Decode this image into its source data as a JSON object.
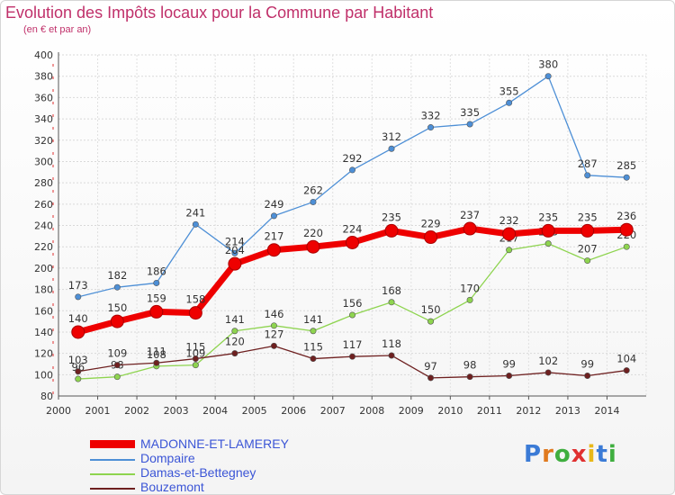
{
  "title": "Evolution des Impôts locaux pour la Commune par Habitant",
  "subtitle": "(en € et par an)",
  "logo_text": "Proxiti",
  "chart_data": {
    "type": "line",
    "x": [
      "2000",
      "2001",
      "2002",
      "2003",
      "2004",
      "2005",
      "2006",
      "2007",
      "2008",
      "2009",
      "2010",
      "2011",
      "2012",
      "2013",
      "2014"
    ],
    "y_ticks": [
      "80",
      "100",
      "120",
      "140",
      "160",
      "180",
      "200",
      "220",
      "240",
      "260",
      "280",
      "300",
      "320",
      "340",
      "360",
      "380",
      "400"
    ],
    "ylim": [
      80,
      400
    ],
    "grid": true,
    "legend": "bottom-left",
    "series": [
      {
        "name": "Damas-et-Bettegney",
        "color": "#8ed44f",
        "values": [
          96,
          98,
          108,
          109,
          141,
          146,
          141,
          156,
          168,
          150,
          170,
          217,
          223,
          207,
          220
        ],
        "labels": [
          "96",
          "98",
          "108",
          "109",
          "141",
          "146",
          "141",
          "156",
          "168",
          "150",
          "170",
          "217",
          "223",
          "207",
          "220"
        ]
      },
      {
        "name": "Bouzemont",
        "color": "#6e2020",
        "values": [
          103,
          109,
          111,
          115,
          120,
          127,
          115,
          117,
          118,
          97,
          98,
          99,
          102,
          99,
          104
        ],
        "labels": [
          "103",
          "109",
          "111",
          "115",
          "120",
          "127",
          "115",
          "117",
          "118",
          "97",
          "98",
          "99",
          "102",
          "99",
          "104"
        ]
      },
      {
        "name": "Dompaire",
        "color": "#4d8fd6",
        "values": [
          173,
          182,
          186,
          241,
          214,
          249,
          262,
          292,
          312,
          332,
          335,
          355,
          380,
          287,
          285
        ],
        "labels": [
          "173",
          "182",
          "186",
          "241",
          "214",
          "249",
          "262",
          "292",
          "312",
          "332",
          "335",
          "355",
          "380",
          "287",
          "285"
        ]
      },
      {
        "name": "MADONNE-ET-LAMEREY",
        "color": "#ee0000",
        "values": [
          140,
          150,
          159,
          158,
          204,
          217,
          220,
          224,
          235,
          229,
          237,
          232,
          235,
          235,
          236
        ],
        "labels": [
          "140",
          "150",
          "159",
          "158",
          "204",
          "217",
          "220",
          "224",
          "235",
          "229",
          "237",
          "232",
          "235",
          "235",
          "236"
        ]
      }
    ],
    "legend_order": [
      "MADONNE-ET-LAMEREY",
      "Dompaire",
      "Damas-et-Bettegney",
      "Bouzemont"
    ]
  }
}
